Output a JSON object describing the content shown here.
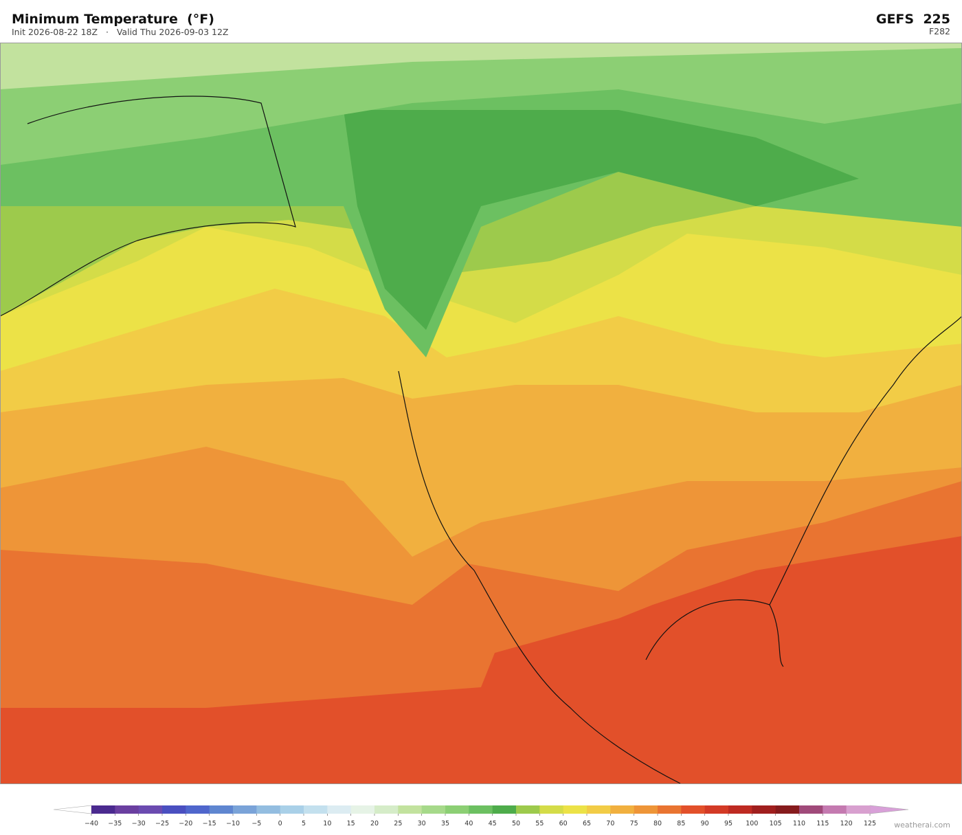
{
  "header": {
    "title": "Minimum Temperature  (°F)",
    "subtitle": "Init 2026-08-22 18Z   ·   Valid Thu 2026-09-03 12Z",
    "model": "GEFS  225",
    "forecast_hour": "F282"
  },
  "colorbar": {
    "ticks": [
      {
        "value": -40,
        "label": "−40"
      },
      {
        "value": -35,
        "label": "−35"
      },
      {
        "value": -30,
        "label": "−30"
      },
      {
        "value": -25,
        "label": "−25"
      },
      {
        "value": -20,
        "label": "−20"
      },
      {
        "value": -15,
        "label": "−15"
      },
      {
        "value": -10,
        "label": "−10"
      },
      {
        "value": -5,
        "label": "−5"
      },
      0,
      5,
      10,
      15,
      20,
      25,
      30,
      35,
      40,
      45,
      50,
      55,
      60,
      65,
      70,
      75,
      80,
      85,
      90,
      95,
      100,
      105,
      110,
      115,
      120,
      125
    ],
    "colors": [
      "#4b2a8f",
      "#6a3fa0",
      "#6b4bb0",
      "#4a4fc0",
      "#4f66cc",
      "#5f86d0",
      "#7aa3d8",
      "#93bde0",
      "#a9d0e8",
      "#c3e0ee",
      "#dcecf2",
      "#e6f3e6",
      "#d5ecc8",
      "#c2e29e",
      "#a6d98a",
      "#8ccf74",
      "#6cc061",
      "#4eac4b",
      "#9dca4c",
      "#d4dc48",
      "#ece247",
      "#f2cc46",
      "#f1b03f",
      "#ee9538",
      "#e97431",
      "#e2502a",
      "#d33a26",
      "#be2a22",
      "#a01f1e",
      "#861b1d",
      "#a04a7a",
      "#c47ab0",
      "#d8a0cf"
    ],
    "under_color": "#ffffff",
    "over_color": "#d8a0d8"
  },
  "footer": {
    "credit": "weatherai.com"
  }
}
